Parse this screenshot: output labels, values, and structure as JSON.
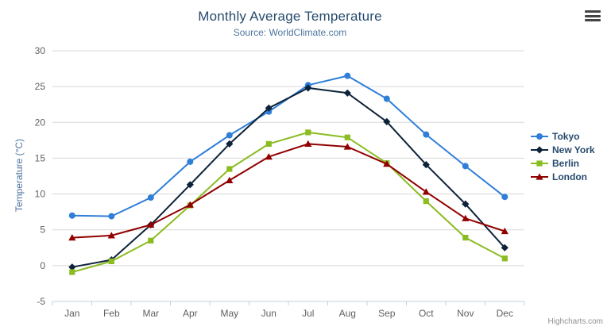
{
  "chart_data": {
    "type": "line",
    "title": "Monthly Average Temperature",
    "subtitle": "Source: WorldClimate.com",
    "xlabel": "",
    "ylabel": "Temperature (°C)",
    "categories": [
      "Jan",
      "Feb",
      "Mar",
      "Apr",
      "May",
      "Jun",
      "Jul",
      "Aug",
      "Sep",
      "Oct",
      "Nov",
      "Dec"
    ],
    "ylim": [
      -5,
      30
    ],
    "yticks": [
      -5,
      0,
      5,
      10,
      15,
      20,
      25,
      30
    ],
    "grid": true,
    "legend_position": "right",
    "series": [
      {
        "name": "Tokyo",
        "color": "#2f7ed8",
        "marker": "circle",
        "values": [
          7.0,
          6.9,
          9.5,
          14.5,
          18.2,
          21.5,
          25.2,
          26.5,
          23.3,
          18.3,
          13.9,
          9.6
        ]
      },
      {
        "name": "New York",
        "color": "#0d233a",
        "marker": "diamond",
        "values": [
          -0.2,
          0.8,
          5.7,
          11.3,
          17.0,
          22.0,
          24.8,
          24.1,
          20.1,
          14.1,
          8.6,
          2.5
        ]
      },
      {
        "name": "Berlin",
        "color": "#8bbc21",
        "marker": "square",
        "values": [
          -0.9,
          0.6,
          3.5,
          8.4,
          13.5,
          17.0,
          18.6,
          17.9,
          14.3,
          9.0,
          3.9,
          1.0
        ]
      },
      {
        "name": "London",
        "color": "#910000",
        "marker": "triangle",
        "values": [
          3.9,
          4.2,
          5.7,
          8.5,
          11.9,
          15.2,
          17.0,
          16.6,
          14.2,
          10.3,
          6.6,
          4.8
        ]
      }
    ],
    "colors": {
      "grid": "#d8d8d8",
      "axis_line": "#c0d0e0",
      "tick_label": "#606060",
      "title": "#274b6d",
      "subtitle": "#4d759e",
      "legend_text": "#274b6d"
    }
  },
  "credits": "Highcharts.com"
}
